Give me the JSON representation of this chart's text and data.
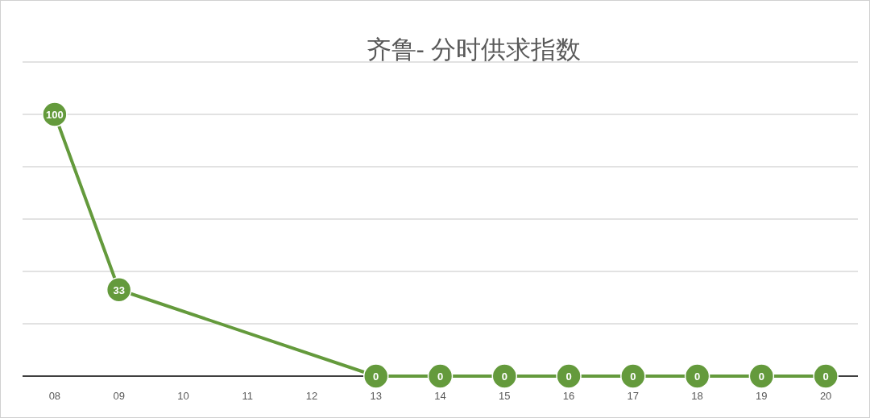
{
  "chart_data": {
    "type": "line",
    "title": "齐鲁- 分时供求指数",
    "categories": [
      "08",
      "09",
      "10",
      "11",
      "12",
      "13",
      "14",
      "15",
      "16",
      "17",
      "18",
      "19",
      "20"
    ],
    "values": [
      100,
      33,
      null,
      null,
      null,
      0,
      0,
      0,
      0,
      0,
      0,
      0,
      0
    ],
    "color": "#649a3c",
    "marker": "circle",
    "data_labels": true,
    "grid": "y",
    "tick_labels": "x",
    "ylim": [
      0,
      120
    ],
    "yticks": [
      {
        "value": 0,
        "label": null
      },
      {
        "value": 20,
        "label": null
      },
      {
        "value": 40,
        "label": null
      },
      {
        "value": 60,
        "label": null
      },
      {
        "value": 80,
        "label": null
      },
      {
        "value": 100,
        "label": null
      },
      {
        "value": 120,
        "label": null
      }
    ]
  }
}
